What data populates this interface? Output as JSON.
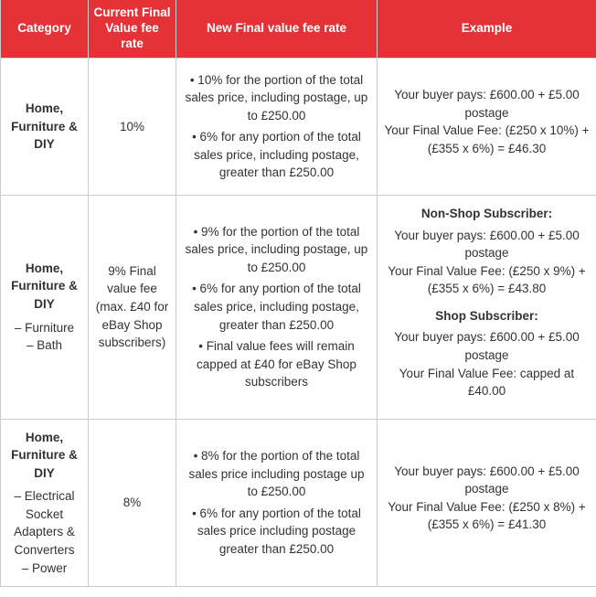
{
  "headers": {
    "category": "Category",
    "current": "Current Final Value fee rate",
    "newrate": "New Final value fee rate",
    "example": "Example"
  },
  "rows": [
    {
      "category_main": "Home, Furniture & DIY",
      "category_sub": "",
      "current": "10%",
      "new_bullets": [
        "• 10% for the portion of the total sales price, including postage, up to £250.00",
        "• 6% for any portion of the total sales price, including postage, greater than £250.00"
      ],
      "example": [
        {
          "head": "",
          "body": "Your buyer pays: £600.00 + £5.00 postage\nYour Final Value Fee: (£250 x 10%) + (£355 x 6%) = £46.30"
        }
      ]
    },
    {
      "category_main": "Home, Furniture & DIY",
      "category_sub": "– Furniture\n– Bath",
      "current": "9% Final value fee (max. £40 for eBay Shop subscribers)",
      "new_bullets": [
        "• 9% for the portion of the total sales price, including postage, up to £250.00",
        "• 6% for any portion of the total sales price, including postage, greater than £250.00",
        "• Final value fees will remain capped at £40 for eBay Shop subscribers"
      ],
      "example": [
        {
          "head": "Non-Shop Subscriber:",
          "body": "Your buyer pays: £600.00 + £5.00 postage\nYour Final Value Fee: (£250 x 9%) + (£355 x 6%) = £43.80"
        },
        {
          "head": "Shop Subscriber:",
          "body": "Your buyer pays: £600.00 + £5.00 postage\nYour Final Value Fee: capped at £40.00"
        }
      ]
    },
    {
      "category_main": "Home, Furniture & DIY",
      "category_sub": "– Electrical Socket Adapters & Converters\n– Power",
      "current": "8%",
      "new_bullets": [
        "• 8% for the portion of the total sales price including postage up to £250.00",
        "• 6% for any portion of the total sales price including postage greater than £250.00"
      ],
      "example": [
        {
          "head": "",
          "body": "Your buyer pays: £600.00 + £5.00 postage\nYour Final Value Fee: (£250 x 8%) + (£355 x 6%) = £41.30"
        }
      ]
    }
  ]
}
